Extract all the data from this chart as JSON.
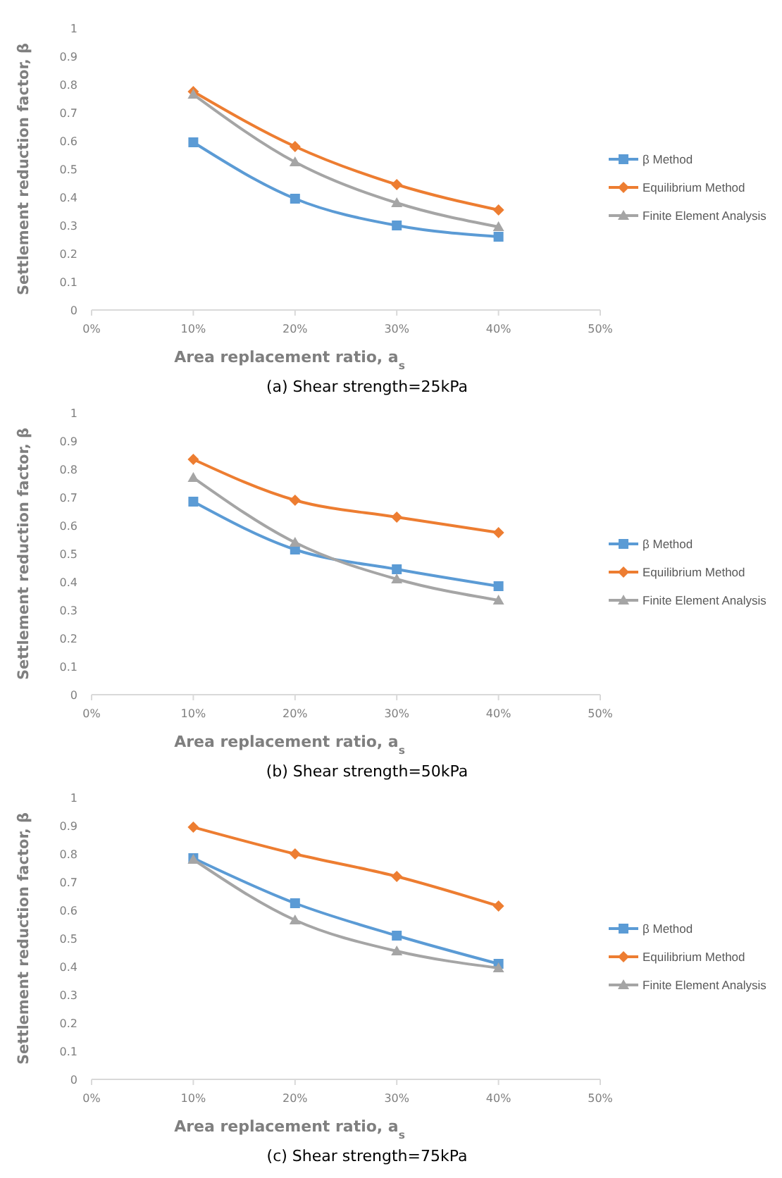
{
  "chart_data": [
    {
      "type": "line",
      "title": "(a) Shear strength=25kPa",
      "xlabel": "Area replacement ratio, a$_{s}$",
      "ylabel": "Settlement reduction factor, β",
      "x": [
        10,
        20,
        30,
        40
      ],
      "xlim": [
        0,
        50
      ],
      "xticks": [
        {
          "value": 0,
          "label": "0%"
        },
        {
          "value": 10,
          "label": "10%"
        },
        {
          "value": 20,
          "label": "20%"
        },
        {
          "value": 30,
          "label": "30%"
        },
        {
          "value": 40,
          "label": "40%"
        },
        {
          "value": 50,
          "label": "50%"
        }
      ],
      "ylim": [
        0,
        1
      ],
      "yticks": [
        0,
        0.1,
        0.2,
        0.3,
        0.4,
        0.5,
        0.6,
        0.7,
        0.8,
        0.9,
        1
      ],
      "grid": false,
      "legend": "right",
      "series": [
        {
          "name": "β Method",
          "color": "#5b9bd5",
          "marker": "square",
          "values": [
            0.595,
            0.395,
            0.3,
            0.26
          ]
        },
        {
          "name": "Equilibrium Method",
          "color": "#ed7d31",
          "marker": "diamond",
          "values": [
            0.775,
            0.58,
            0.445,
            0.355
          ]
        },
        {
          "name": "Finite Element Analysis",
          "color": "#a5a5a5",
          "marker": "triangle",
          "values": [
            0.765,
            0.525,
            0.38,
            0.295
          ]
        }
      ]
    },
    {
      "type": "line",
      "title": "(b) Shear strength=50kPa",
      "xlabel": "Area replacement ratio, a$_{s}$",
      "ylabel": "Settlement reduction factor, β",
      "x": [
        10,
        20,
        30,
        40
      ],
      "xlim": [
        0,
        50
      ],
      "xticks": [
        {
          "value": 0,
          "label": "0%"
        },
        {
          "value": 10,
          "label": "10%"
        },
        {
          "value": 20,
          "label": "20%"
        },
        {
          "value": 30,
          "label": "30%"
        },
        {
          "value": 40,
          "label": "40%"
        },
        {
          "value": 50,
          "label": "50%"
        }
      ],
      "ylim": [
        0,
        1
      ],
      "yticks": [
        0,
        0.1,
        0.2,
        0.3,
        0.4,
        0.5,
        0.6,
        0.7,
        0.8,
        0.9,
        1
      ],
      "grid": false,
      "legend": "right",
      "series": [
        {
          "name": "β Method",
          "color": "#5b9bd5",
          "marker": "square",
          "values": [
            0.685,
            0.515,
            0.445,
            0.385
          ]
        },
        {
          "name": "Equilibrium Method",
          "color": "#ed7d31",
          "marker": "diamond",
          "values": [
            0.835,
            0.69,
            0.63,
            0.575
          ]
        },
        {
          "name": "Finite Element Analysis",
          "color": "#a5a5a5",
          "marker": "triangle",
          "values": [
            0.77,
            0.54,
            0.41,
            0.335
          ]
        }
      ]
    },
    {
      "type": "line",
      "title": "(c) Shear strength=75kPa",
      "xlabel": "Area replacement ratio, a$_{s}$",
      "ylabel": "Settlement reduction factor, β",
      "x": [
        10,
        20,
        30,
        40
      ],
      "xlim": [
        0,
        50
      ],
      "xticks": [
        {
          "value": 0,
          "label": "0%"
        },
        {
          "value": 10,
          "label": "10%"
        },
        {
          "value": 20,
          "label": "20%"
        },
        {
          "value": 30,
          "label": "30%"
        },
        {
          "value": 40,
          "label": "40%"
        },
        {
          "value": 50,
          "label": "50%"
        }
      ],
      "ylim": [
        0,
        1
      ],
      "yticks": [
        0,
        0.1,
        0.2,
        0.3,
        0.4,
        0.5,
        0.6,
        0.7,
        0.8,
        0.9,
        1
      ],
      "grid": false,
      "legend": "right",
      "series": [
        {
          "name": "β Method",
          "color": "#5b9bd5",
          "marker": "square",
          "values": [
            0.785,
            0.625,
            0.51,
            0.41
          ]
        },
        {
          "name": "Equilibrium Method",
          "color": "#ed7d31",
          "marker": "diamond",
          "values": [
            0.895,
            0.8,
            0.72,
            0.615
          ]
        },
        {
          "name": "Finite Element Analysis",
          "color": "#a5a5a5",
          "marker": "triangle",
          "values": [
            0.78,
            0.565,
            0.455,
            0.395
          ]
        }
      ]
    }
  ]
}
